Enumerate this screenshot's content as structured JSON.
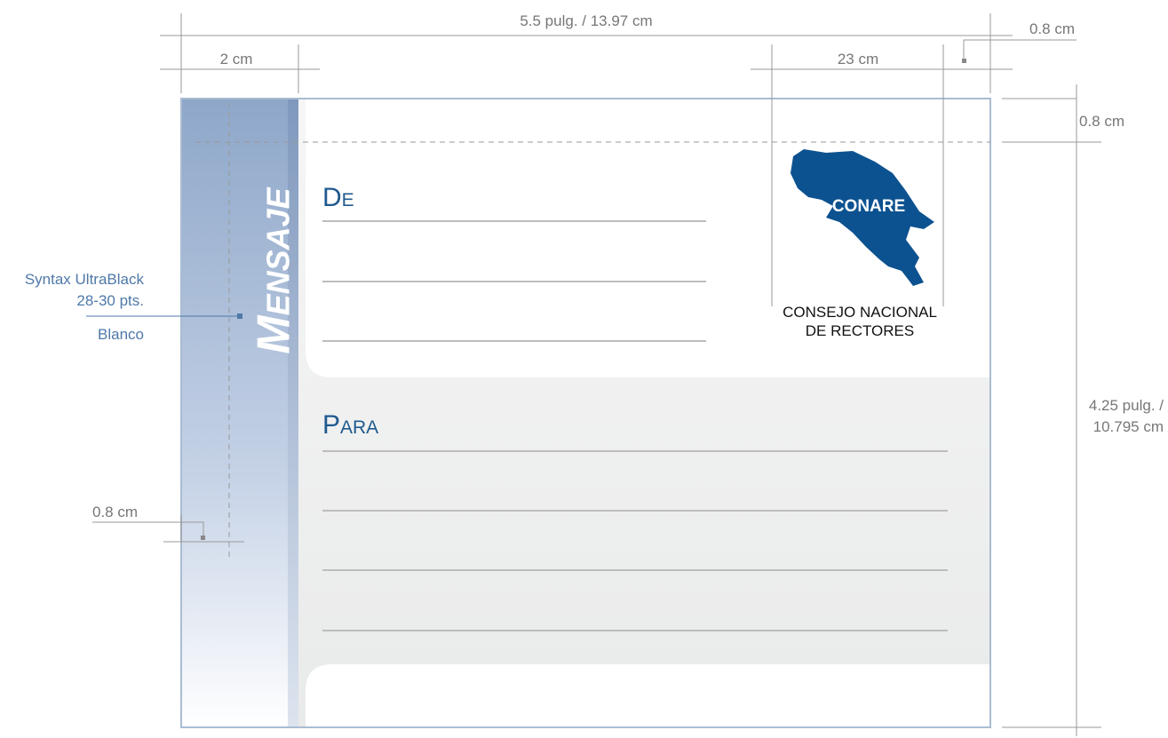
{
  "dimensions": {
    "width": "5.5 pulg. / 13.97 cm",
    "top_margin": "0.8 cm",
    "sidebar": "2 cm",
    "logo": "23 cm",
    "right_margin": "0.8 cm",
    "left_margin": "0.8 cm",
    "height": [
      "4.25 pulg. /",
      "10.795 cm"
    ]
  },
  "font_note": [
    "Syntax UltraBlack",
    "28-30 pts.",
    "Blanco"
  ],
  "card": {
    "sidebar_title": "Mensaje",
    "from": "De",
    "to": "Para"
  },
  "logo": {
    "badge": "CONARE",
    "name": [
      "CONSEJO NACIONAL",
      "DE RECTORES"
    ]
  }
}
